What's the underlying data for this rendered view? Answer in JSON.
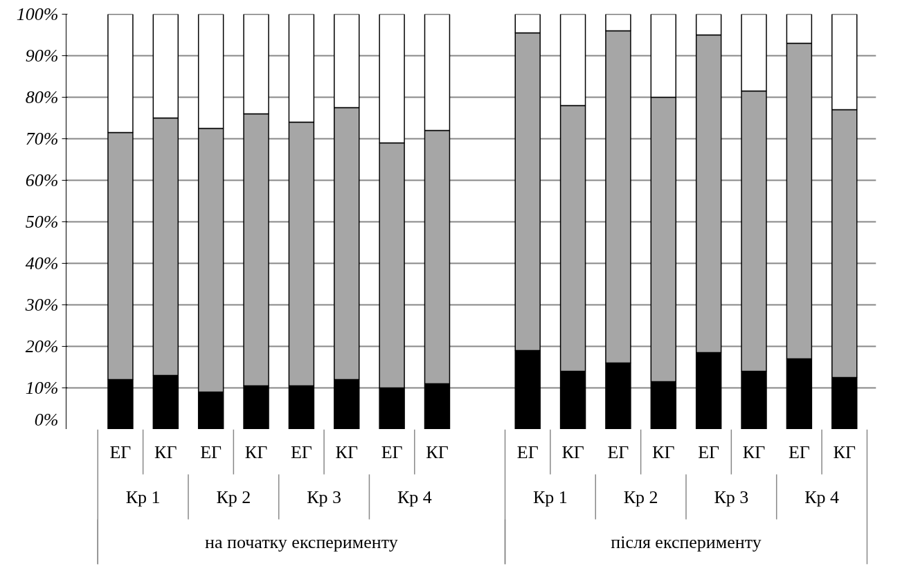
{
  "chart_data": {
    "type": "bar",
    "stacked": true,
    "categories": [
      "ЕГ",
      "КГ",
      "ЕГ",
      "КГ",
      "ЕГ",
      "КГ",
      "ЕГ",
      "КГ",
      null,
      "ЕГ",
      "КГ",
      "ЕГ",
      "КГ",
      "ЕГ",
      "КГ",
      "ЕГ",
      "КГ"
    ],
    "series": [
      {
        "color": "#000000",
        "values": [
          12,
          13,
          9,
          10.5,
          10.5,
          12,
          10,
          11,
          null,
          19,
          14,
          16,
          11.5,
          18.5,
          14,
          17,
          12.5
        ]
      },
      {
        "color": "#a6a6a6",
        "values": [
          59.5,
          62,
          63.5,
          65.5,
          63.5,
          65.5,
          59,
          61,
          null,
          76.5,
          64,
          80,
          68.5,
          76.5,
          67.5,
          76,
          64.5
        ]
      },
      {
        "color": "#ffffff",
        "values": [
          28.5,
          25,
          27.5,
          24,
          26,
          22.5,
          31,
          28,
          null,
          4.5,
          22,
          4,
          20,
          5,
          18.5,
          7,
          23
        ]
      }
    ],
    "ylim": [
      0,
      100
    ],
    "yticks": [
      {
        "value": 0,
        "label": "0%"
      },
      {
        "value": 10,
        "label": "10%"
      },
      {
        "value": 20,
        "label": "20%"
      },
      {
        "value": 30,
        "label": "30%"
      },
      {
        "value": 40,
        "label": "40%"
      },
      {
        "value": 50,
        "label": "50%"
      },
      {
        "value": 60,
        "label": "60%"
      },
      {
        "value": 70,
        "label": "70%"
      },
      {
        "value": 80,
        "label": "80%"
      },
      {
        "value": 90,
        "label": "90%"
      },
      {
        "value": 100,
        "label": "100%"
      }
    ],
    "grid": "y",
    "annotations": [
      "Кр 1",
      "Кр 2",
      "Кр 3",
      "Кр 4",
      "Кр 1",
      "Кр 2",
      "Кр 3",
      "Кр 4",
      "на початку експерименту",
      "після експерименту"
    ]
  }
}
